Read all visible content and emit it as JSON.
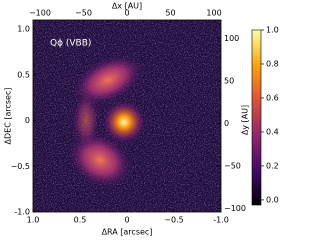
{
  "chart_data": {
    "type": "image",
    "annotation": "Qϕ (VBB)",
    "xlabel": "ΔRA [arcsec]",
    "ylabel": "ΔDEC [arcsec]",
    "x2label": "Δx [AU]",
    "y2label": "Δy [AU]",
    "xlim": [
      1.0,
      -1.0
    ],
    "xticks": [
      {
        "value": 1,
        "label": "1.0"
      },
      0.5,
      0,
      -0.5,
      {
        "value": -1,
        "label": "-1.0"
      }
    ],
    "ylim": [
      -1.0,
      1.1
    ],
    "yticks": [
      {
        "value": 1,
        "label": "1.0"
      },
      0.5,
      0,
      -0.5,
      {
        "value": -1,
        "label": "-1.0"
      }
    ],
    "x2lim": [
      -108,
      108
    ],
    "x2ticks": [
      -100,
      -50,
      0,
      50,
      100
    ],
    "y2lim": [
      -104,
      122
    ],
    "y2ticks": [
      100,
      50,
      0,
      -50,
      -100
    ],
    "colormap": "inferno",
    "clim": [
      -0.03,
      1.0
    ],
    "cticks": [
      {
        "value": 1,
        "label": "1.0"
      },
      0.8,
      0.6,
      0.4,
      0.2,
      {
        "value": 0,
        "label": "0.0"
      }
    ]
  }
}
